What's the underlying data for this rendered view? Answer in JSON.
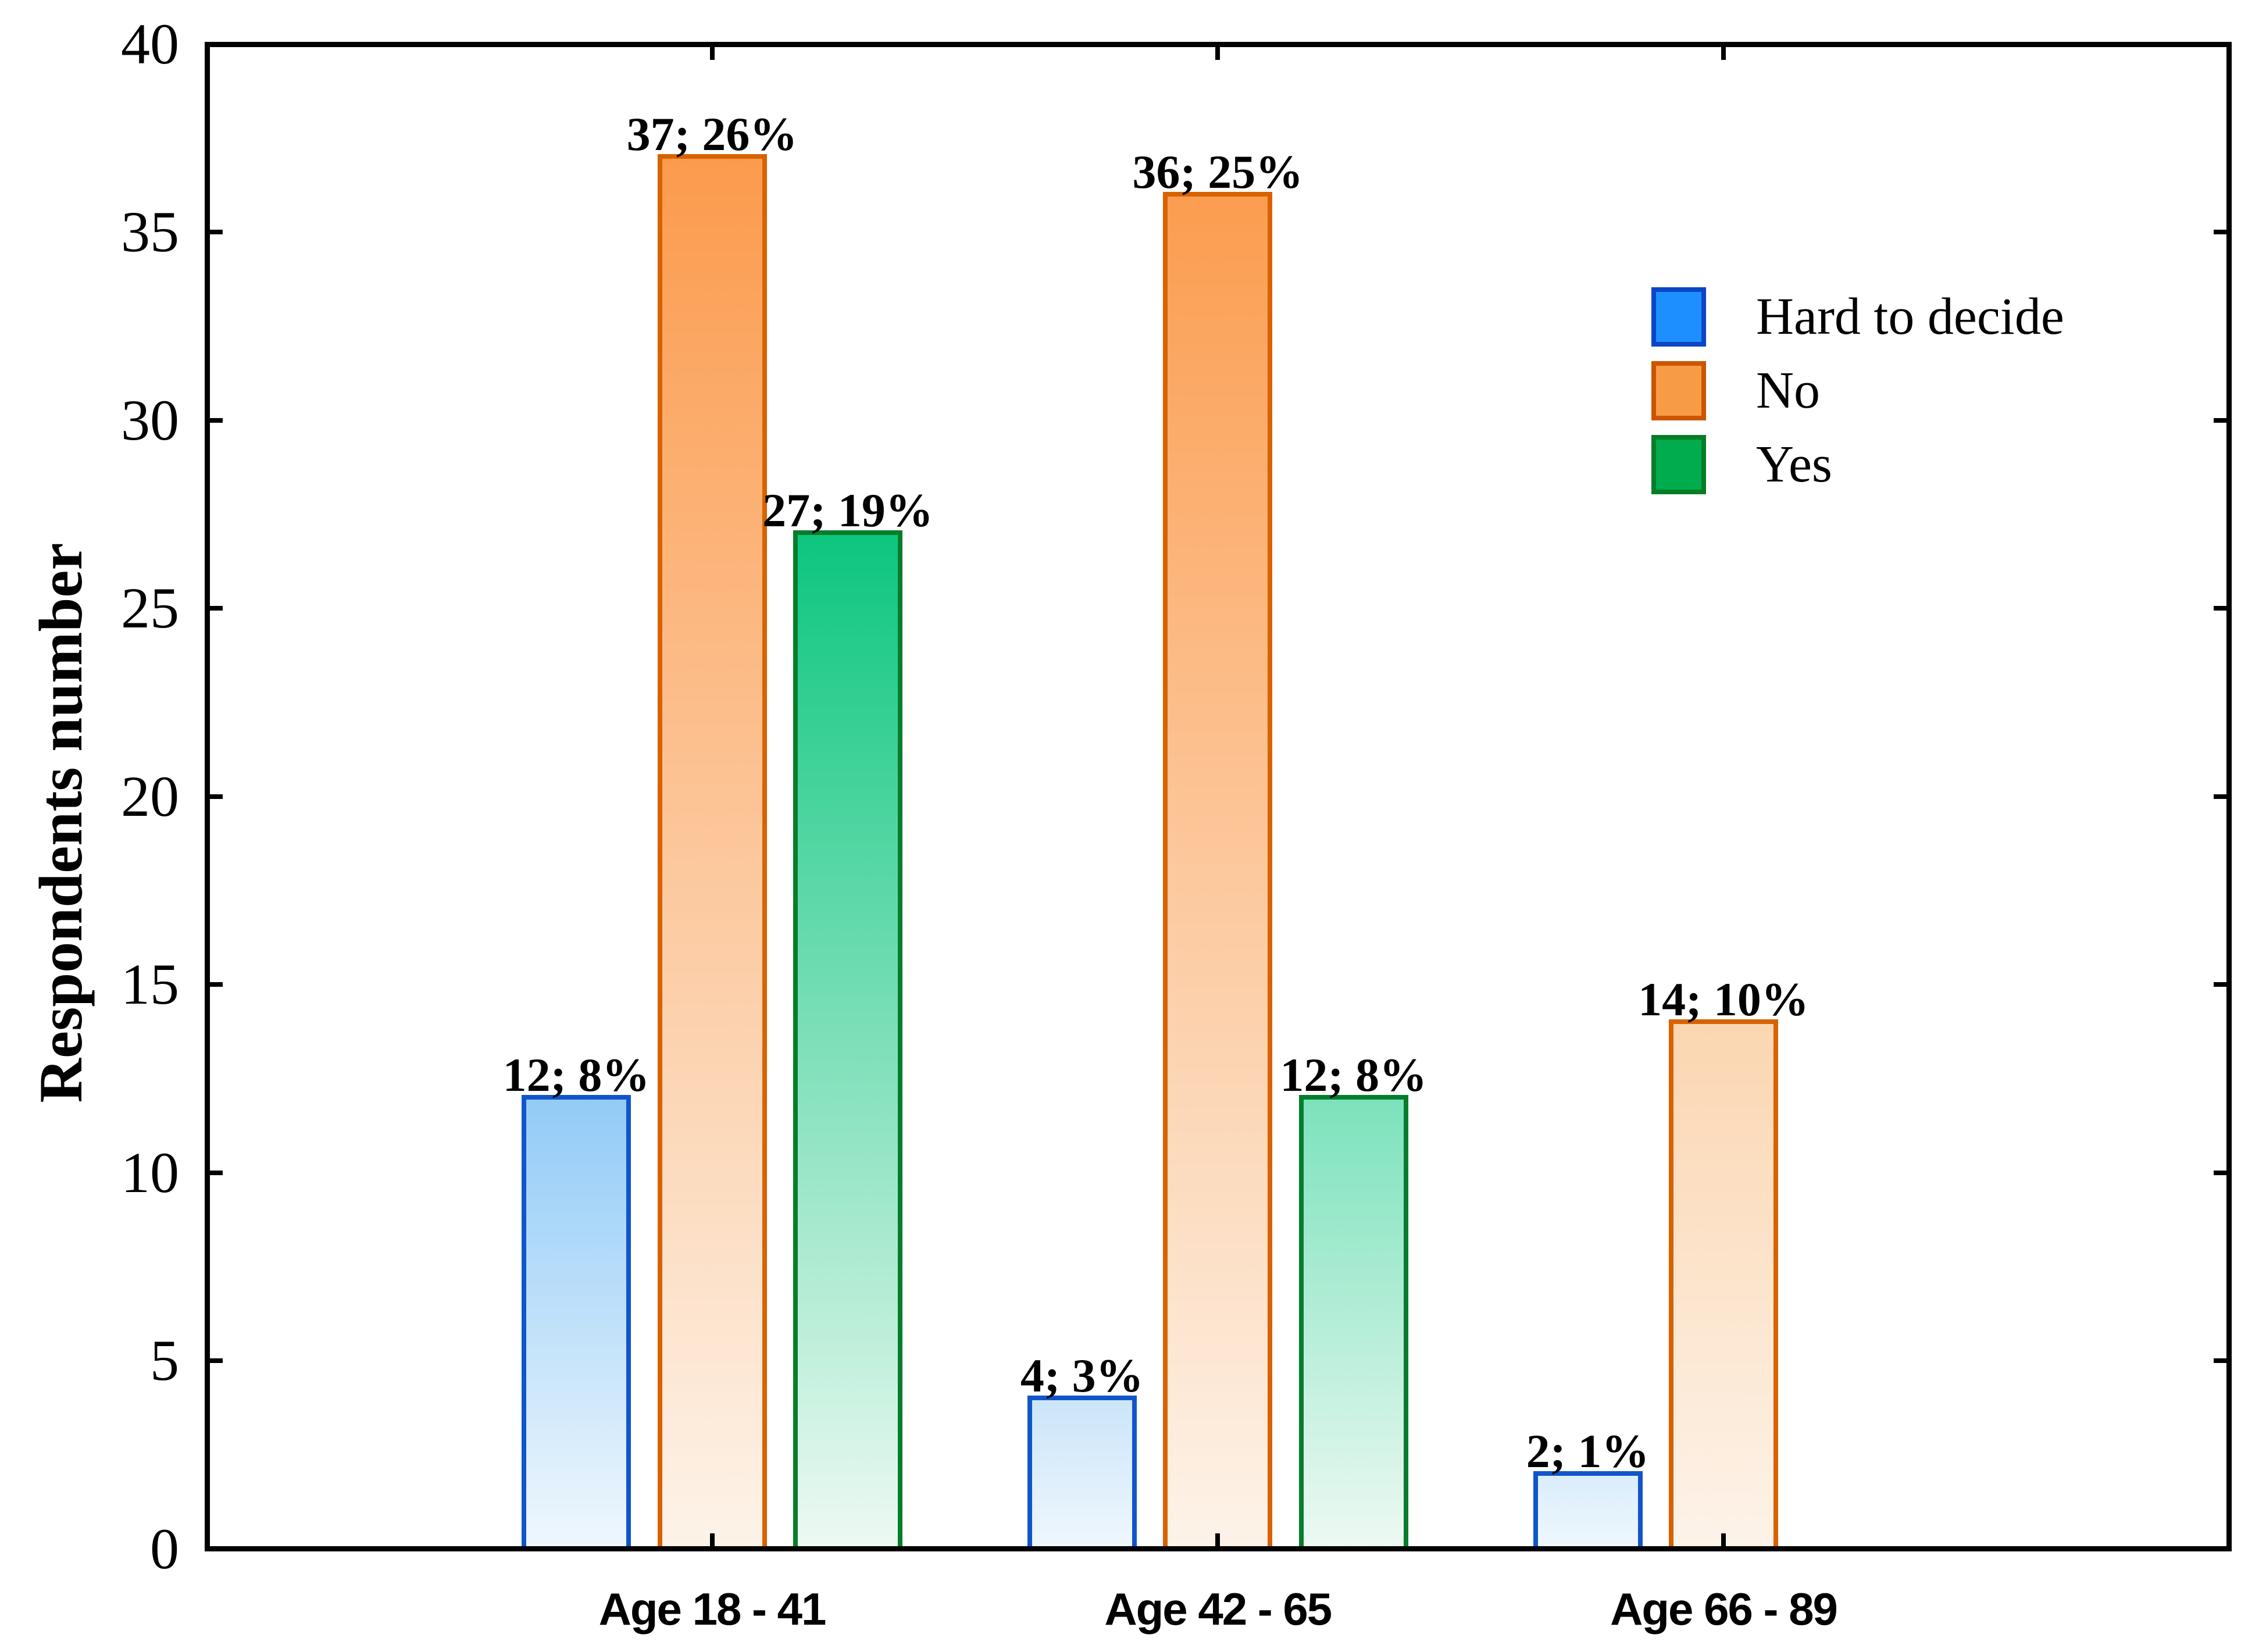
{
  "chart_data": {
    "type": "bar",
    "title": "",
    "xlabel": "",
    "ylabel": "Respondents number",
    "ylim": [
      0,
      40
    ],
    "yticks": [
      0,
      5,
      10,
      15,
      20,
      25,
      30,
      35,
      40
    ],
    "grid": false,
    "frame": "full box with inward ticks on all four sides",
    "legend_position": "upper right inside plot",
    "categories": [
      "Age 18 - 41",
      "Age 42 - 65",
      "Age 66 - 89"
    ],
    "series": [
      {
        "name": "Hard to decide",
        "values": [
          12,
          4,
          2
        ],
        "data_labels": [
          "12; 8%",
          "4; 3%",
          "2; 1%"
        ],
        "legend_fill": "#1E8FFF",
        "legend_border": "#0B45C8",
        "bar_border": "#1155CB",
        "bar_top_colors": [
          "#92CBF7",
          "#CBE5F9",
          "#DAEDFB"
        ],
        "bar_bottom_color": "#EFF7FD"
      },
      {
        "name": "No",
        "values": [
          37,
          36,
          14
        ],
        "data_labels": [
          "37; 26%",
          "36; 25%",
          "14; 10%"
        ],
        "legend_fill": "#F89B45",
        "legend_border": "#CC5500",
        "bar_border": "#D96200",
        "bar_top_colors": [
          "#FB9B4D",
          "#FB9D50",
          "#FBD6B1"
        ],
        "bar_bottom_color": "#FDF3E9"
      },
      {
        "name": "Yes",
        "values": [
          27,
          12,
          0
        ],
        "data_labels": [
          "27; 19%",
          "12; 8%",
          ""
        ],
        "legend_fill": "#00AC4E",
        "legend_border": "#067D26",
        "bar_border": "#077D2B",
        "bar_top_colors": [
          "#0DC67E",
          "#7CE2BC",
          "#7CE2BC"
        ],
        "bar_bottom_color": "#EDF9F3"
      }
    ]
  }
}
